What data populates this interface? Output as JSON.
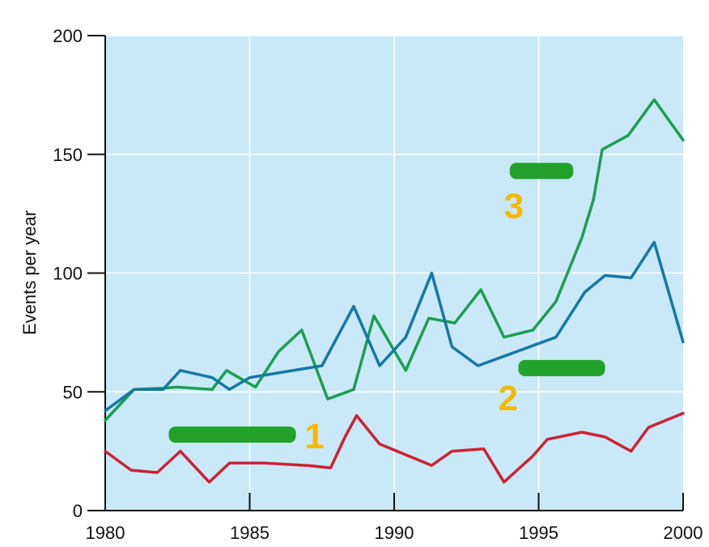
{
  "chart_data": {
    "type": "line",
    "title": "",
    "xlabel": "",
    "ylabel": "Events per year",
    "xlim": [
      1980,
      2000
    ],
    "ylim": [
      0,
      200
    ],
    "x_ticks": [
      "1980",
      "1985",
      "1990",
      "1995",
      "2000"
    ],
    "y_ticks": [
      "0",
      "50",
      "100",
      "150",
      "200"
    ],
    "grid": true,
    "background": "#c9e9f8",
    "series": [
      {
        "color": "#1a9e4f",
        "annotation": "3",
        "points": [
          [
            1980,
            38
          ],
          [
            1981,
            51
          ],
          [
            1982,
            51.5
          ],
          [
            1982.5,
            52
          ],
          [
            1983.7,
            51
          ],
          [
            1984.2,
            59
          ],
          [
            1985.2,
            52
          ],
          [
            1986,
            67
          ],
          [
            1986.8,
            76
          ],
          [
            1987.7,
            47
          ],
          [
            1988.6,
            51
          ],
          [
            1989.3,
            82
          ],
          [
            1990.4,
            59
          ],
          [
            1991.2,
            81
          ],
          [
            1992.1,
            79
          ],
          [
            1993,
            93
          ],
          [
            1993.8,
            73
          ],
          [
            1994.8,
            76
          ],
          [
            1995.6,
            88
          ],
          [
            1996.5,
            115
          ],
          [
            1996.9,
            131
          ],
          [
            1997.2,
            152
          ],
          [
            1998.1,
            158
          ],
          [
            1999,
            173
          ],
          [
            2000,
            156
          ]
        ]
      },
      {
        "color": "#1577a6",
        "annotation": "2",
        "points": [
          [
            1980,
            42
          ],
          [
            1981,
            51
          ],
          [
            1982,
            51
          ],
          [
            1982.6,
            59
          ],
          [
            1983.7,
            56
          ],
          [
            1984.3,
            51
          ],
          [
            1985,
            56
          ],
          [
            1987.5,
            61
          ],
          [
            1988.6,
            86
          ],
          [
            1989.5,
            61
          ],
          [
            1990.4,
            73
          ],
          [
            1991.3,
            100
          ],
          [
            1992,
            69
          ],
          [
            1992.9,
            61
          ],
          [
            1995.6,
            73
          ],
          [
            1996.6,
            92
          ],
          [
            1997.3,
            99
          ],
          [
            1998.2,
            98
          ],
          [
            1999,
            113
          ],
          [
            2000,
            71
          ]
        ]
      },
      {
        "color": "#cc2233",
        "annotation": "1",
        "points": [
          [
            1980,
            25
          ],
          [
            1980.9,
            17
          ],
          [
            1981.8,
            16
          ],
          [
            1982.6,
            25
          ],
          [
            1983.6,
            12
          ],
          [
            1984.3,
            20
          ],
          [
            1985.5,
            20
          ],
          [
            1987,
            19
          ],
          [
            1987.8,
            18
          ],
          [
            1988.3,
            31
          ],
          [
            1988.7,
            40
          ],
          [
            1989.5,
            28
          ],
          [
            1991.3,
            19
          ],
          [
            1992,
            25
          ],
          [
            1993.1,
            26
          ],
          [
            1993.8,
            12
          ],
          [
            1994.8,
            23
          ],
          [
            1995.3,
            30
          ],
          [
            1996.5,
            33
          ],
          [
            1997.3,
            31
          ],
          [
            1998.2,
            25
          ],
          [
            1998.8,
            35
          ],
          [
            2000,
            41
          ]
        ]
      }
    ]
  }
}
